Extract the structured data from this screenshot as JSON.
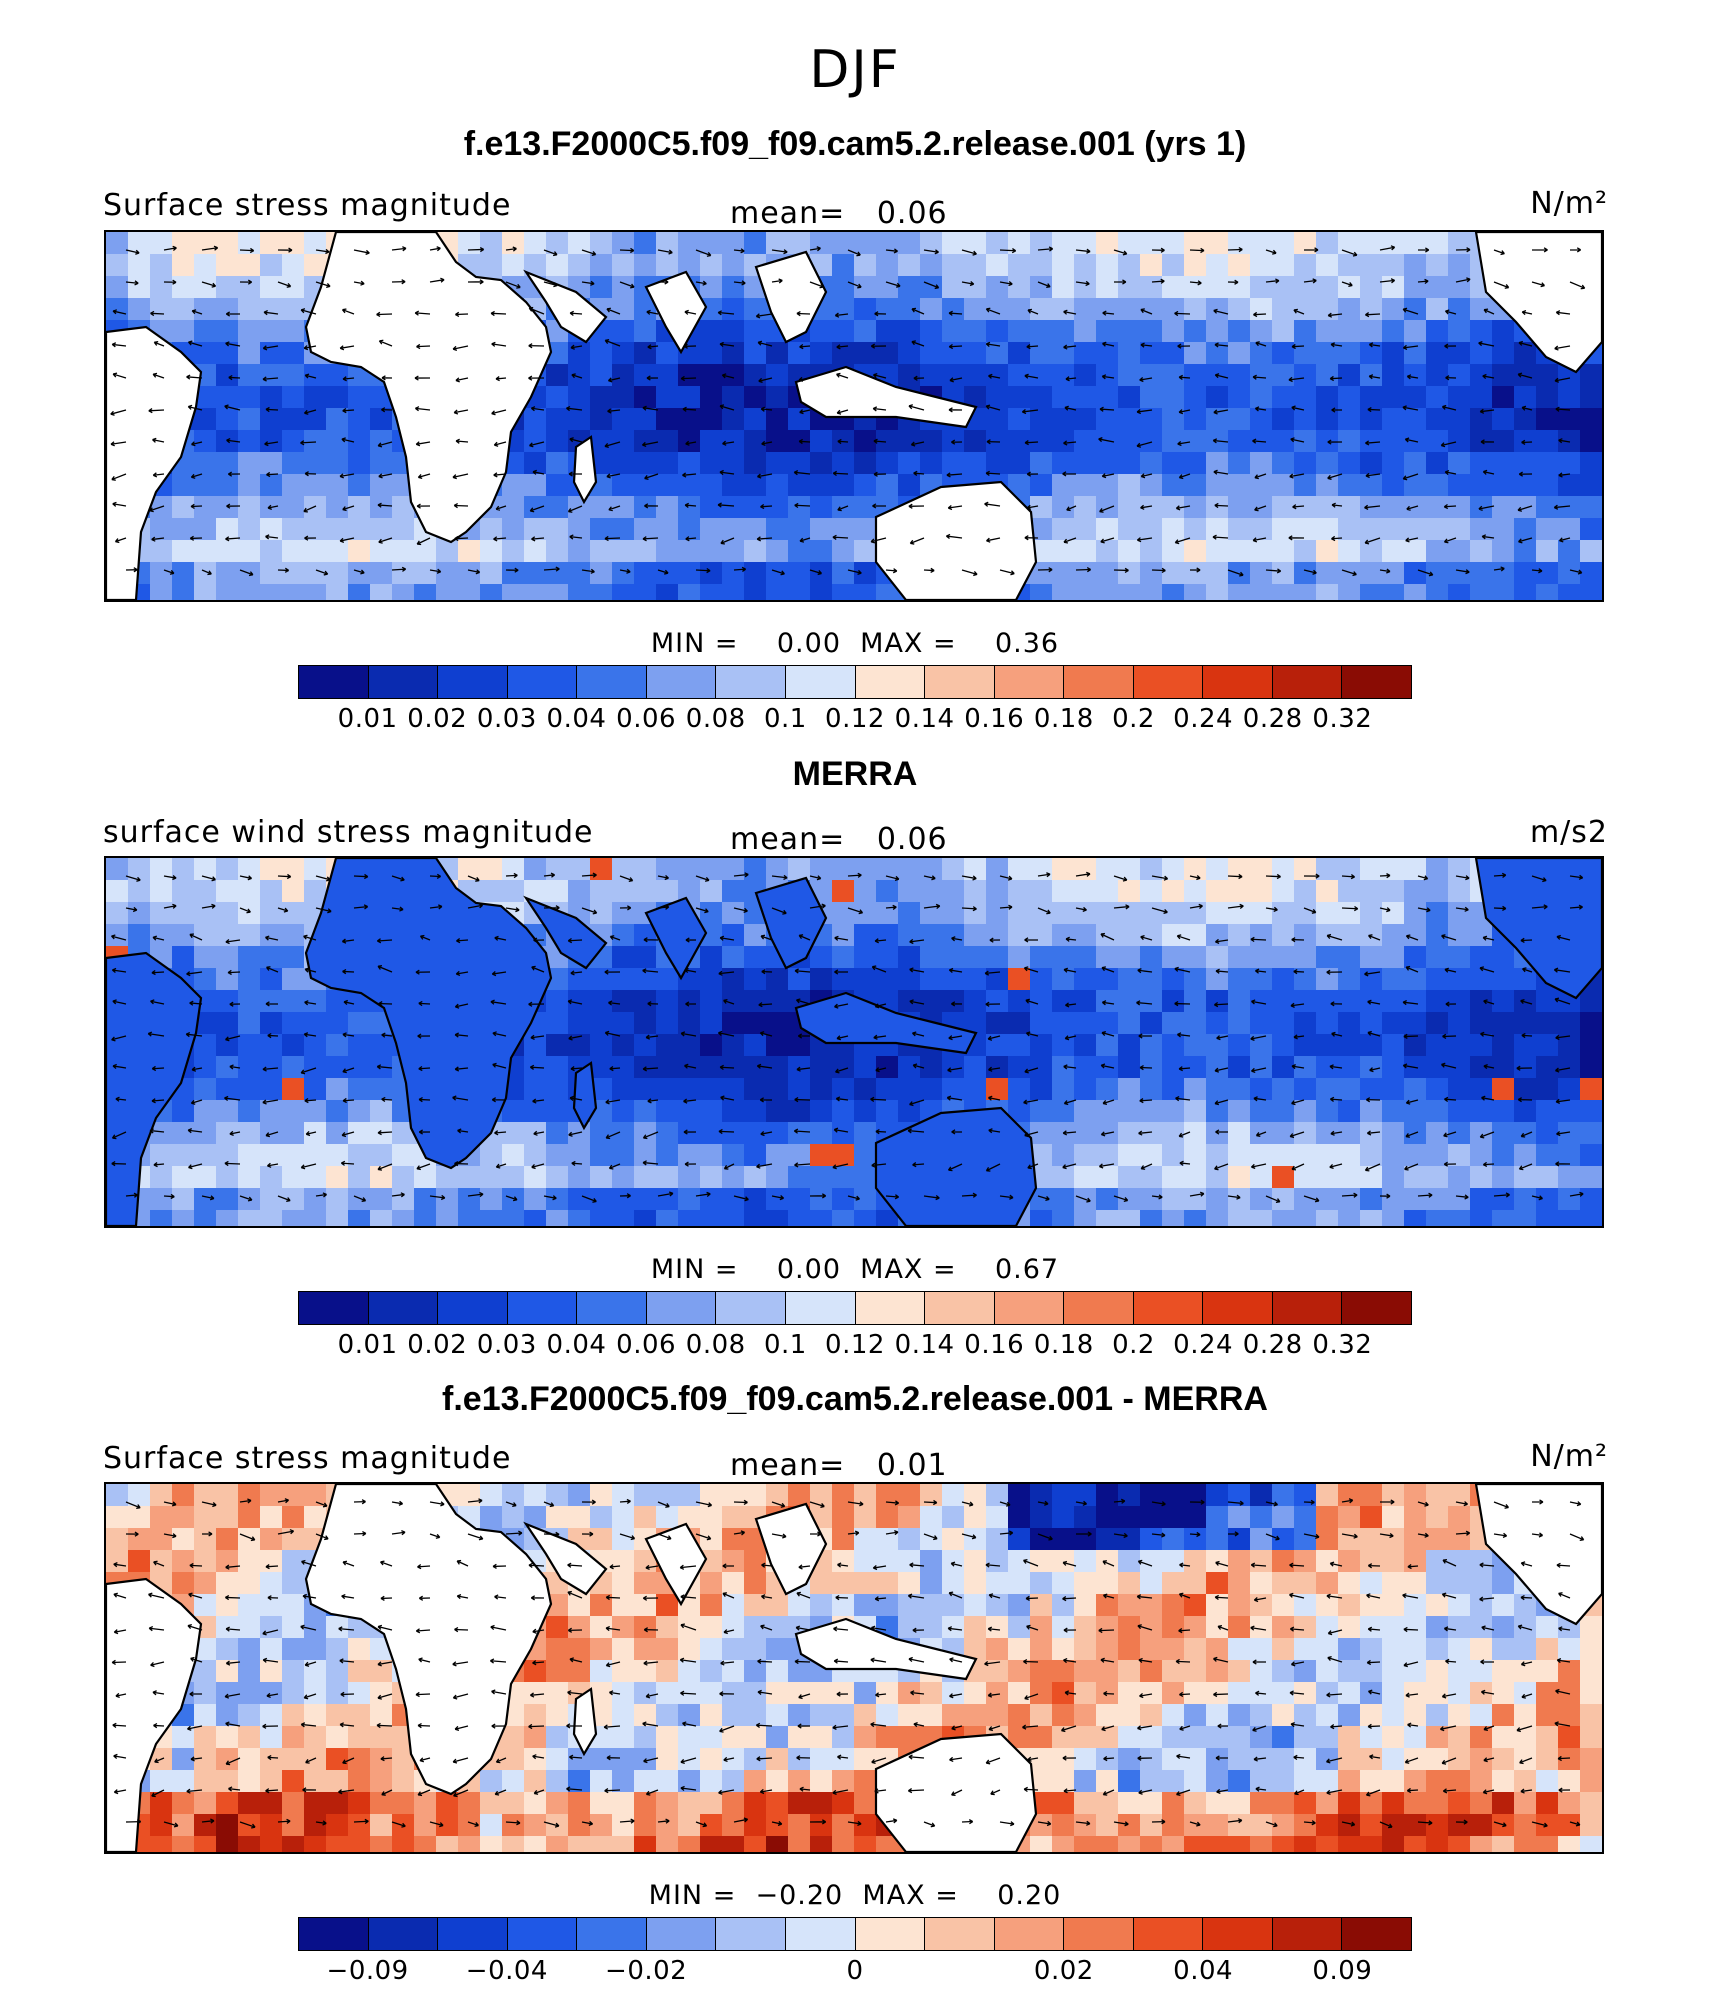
{
  "title": "DJF",
  "colors": {
    "scale": [
      "#08108a",
      "#0a2bb0",
      "#0f3fd0",
      "#1f58e6",
      "#3a74ea",
      "#7da0f0",
      "#a9c1f5",
      "#d6e4fa",
      "#fde4d2",
      "#f9c3a6",
      "#f6a07d",
      "#f07a4f",
      "#ea5024",
      "#d93410",
      "#b8200a",
      "#8a0c04"
    ],
    "land": "#ffffff"
  },
  "panels": [
    {
      "case_title": "f.e13.F2000C5.f09_f09.cam5.2.release.001 (yrs 1)",
      "left_label": "Surface stress magnitude",
      "mean_label": "mean=   0.06",
      "units": "N/m²",
      "minmax": "MIN =    0.00  MAX =    0.36",
      "colorbar_ticks": [
        "0.01",
        "0.02",
        "0.03",
        "0.04",
        "0.06",
        "0.08",
        "0.1",
        "0.12",
        "0.14",
        "0.16",
        "0.18",
        "0.2",
        "0.24",
        "0.28",
        "0.32"
      ],
      "field_style": "model"
    },
    {
      "case_title": "MERRA",
      "left_label": "surface wind stress magnitude",
      "mean_label": "mean=   0.06",
      "units": "m/s2",
      "minmax": "MIN =    0.00  MAX =    0.67",
      "colorbar_ticks": [
        "0.01",
        "0.02",
        "0.03",
        "0.04",
        "0.06",
        "0.08",
        "0.1",
        "0.12",
        "0.14",
        "0.16",
        "0.18",
        "0.2",
        "0.24",
        "0.28",
        "0.32"
      ],
      "field_style": "obs"
    },
    {
      "case_title": "f.e13.F2000C5.f09_f09.cam5.2.release.001 - MERRA",
      "left_label": "Surface stress magnitude",
      "mean_label": "mean=   0.01",
      "units": "N/m²",
      "minmax": "MIN =  −0.20  MAX =    0.20",
      "colorbar_ticks": [
        "−0.09",
        "−0.04",
        "−0.02",
        "0",
        "0.02",
        "0.04",
        "0.09"
      ],
      "field_style": "diff"
    }
  ]
}
